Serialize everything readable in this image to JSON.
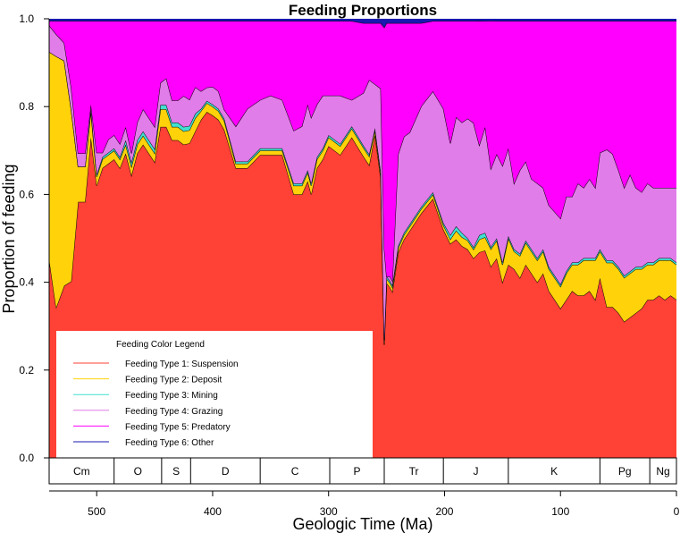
{
  "chart_data": {
    "type": "area",
    "title": "Feeding Proportions",
    "xlabel": "Geologic Time (Ma)",
    "ylabel": "Proportion of feeding",
    "xlim": [
      541,
      0
    ],
    "ylim": [
      0,
      1
    ],
    "x_ticks": [
      500,
      400,
      300,
      200,
      100,
      0
    ],
    "y_ticks": [
      "0.0",
      "0.2",
      "0.4",
      "0.6",
      "0.8",
      "1.0"
    ],
    "grid": false,
    "legend": {
      "title": "Feeding Color Legend",
      "placement": "bottom-left",
      "entries": [
        {
          "label": "Feeding Type 1: Suspension",
          "color": "#FF4136"
        },
        {
          "label": "Feeding Type 2: Deposit",
          "color": "#FFD20A"
        },
        {
          "label": "Feeding Type 3: Mining",
          "color": "#40E0D0"
        },
        {
          "label": "Feeding Type 4: Grazing",
          "color": "#E07DE8"
        },
        {
          "label": "Feeding Type 5: Predatory",
          "color": "#FF00FF"
        },
        {
          "label": "Feeding Type 6: Other",
          "color": "#1A1AB0"
        }
      ]
    },
    "periods": [
      {
        "label": "Cm",
        "start": 541,
        "end": 485
      },
      {
        "label": "O",
        "start": 485,
        "end": 444
      },
      {
        "label": "S",
        "start": 444,
        "end": 419
      },
      {
        "label": "D",
        "start": 419,
        "end": 359
      },
      {
        "label": "C",
        "start": 359,
        "end": 299
      },
      {
        "label": "P",
        "start": 299,
        "end": 252
      },
      {
        "label": "Tr",
        "start": 252,
        "end": 201
      },
      {
        "label": "J",
        "start": 201,
        "end": 145
      },
      {
        "label": "K",
        "start": 145,
        "end": 66
      },
      {
        "label": "Pg",
        "start": 66,
        "end": 23
      },
      {
        "label": "Ng",
        "start": 23,
        "end": 0
      }
    ],
    "x": [
      541,
      535,
      528,
      522,
      516,
      510,
      505,
      500,
      495,
      490,
      485,
      480,
      475,
      470,
      465,
      460,
      455,
      450,
      445,
      440,
      435,
      430,
      425,
      420,
      415,
      410,
      405,
      400,
      395,
      390,
      380,
      370,
      359,
      350,
      340,
      330,
      323,
      318,
      315,
      310,
      305,
      300,
      290,
      280,
      270,
      265,
      260,
      255,
      252,
      250,
      247,
      245,
      240,
      235,
      230,
      220,
      210,
      201,
      195,
      190,
      185,
      180,
      175,
      170,
      165,
      160,
      155,
      150,
      145,
      140,
      135,
      130,
      125,
      120,
      115,
      110,
      100,
      95,
      90,
      85,
      80,
      75,
      70,
      66,
      60,
      55,
      50,
      45,
      40,
      35,
      30,
      25,
      20,
      15,
      10,
      5,
      0
    ],
    "series": [
      {
        "name": "Feeding Type 1: Suspension",
        "color": "#FF4136",
        "values": [
          0.45,
          0.34,
          0.39,
          0.4,
          0.58,
          0.58,
          0.73,
          0.62,
          0.66,
          0.67,
          0.68,
          0.66,
          0.69,
          0.64,
          0.69,
          0.71,
          0.69,
          0.67,
          0.75,
          0.75,
          0.72,
          0.72,
          0.71,
          0.72,
          0.74,
          0.77,
          0.78,
          0.78,
          0.77,
          0.74,
          0.66,
          0.66,
          0.69,
          0.69,
          0.69,
          0.6,
          0.6,
          0.63,
          0.6,
          0.66,
          0.68,
          0.71,
          0.69,
          0.73,
          0.69,
          0.67,
          0.74,
          0.64,
          0.26,
          0.4,
          0.39,
          0.38,
          0.47,
          0.5,
          0.52,
          0.56,
          0.59,
          0.52,
          0.49,
          0.5,
          0.48,
          0.47,
          0.45,
          0.48,
          0.47,
          0.44,
          0.45,
          0.4,
          0.44,
          0.43,
          0.41,
          0.44,
          0.42,
          0.4,
          0.42,
          0.38,
          0.34,
          0.36,
          0.38,
          0.37,
          0.37,
          0.38,
          0.36,
          0.41,
          0.34,
          0.34,
          0.33,
          0.31,
          0.32,
          0.33,
          0.34,
          0.36,
          0.36,
          0.37,
          0.36,
          0.37,
          0.36
        ]
      },
      {
        "name": "Feeding Type 2: Deposit",
        "color": "#FFD20A",
        "values": [
          0.47,
          0.57,
          0.51,
          0.39,
          0.08,
          0.08,
          0.06,
          0.02,
          0.02,
          0.02,
          0.02,
          0.02,
          0.02,
          0.02,
          0.02,
          0.02,
          0.02,
          0.02,
          0.04,
          0.04,
          0.03,
          0.03,
          0.03,
          0.03,
          0.03,
          0.02,
          0.02,
          0.02,
          0.02,
          0.02,
          0.01,
          0.01,
          0.01,
          0.01,
          0.01,
          0.02,
          0.02,
          0.02,
          0.02,
          0.02,
          0.02,
          0.02,
          0.02,
          0.02,
          0.02,
          0.02,
          0.01,
          0.01,
          0.01,
          0.01,
          0.01,
          0.01,
          0.01,
          0.01,
          0.01,
          0.01,
          0.01,
          0.01,
          0.01,
          0.02,
          0.02,
          0.02,
          0.02,
          0.03,
          0.03,
          0.04,
          0.04,
          0.04,
          0.06,
          0.04,
          0.05,
          0.05,
          0.05,
          0.05,
          0.05,
          0.05,
          0.05,
          0.06,
          0.06,
          0.07,
          0.08,
          0.07,
          0.09,
          0.06,
          0.1,
          0.1,
          0.1,
          0.1,
          0.1,
          0.1,
          0.09,
          0.08,
          0.08,
          0.08,
          0.09,
          0.08,
          0.08
        ]
      },
      {
        "name": "Feeding Type 3: Mining",
        "color": "#40E0D0",
        "values": [
          0.0,
          0.0,
          0.0,
          0.0,
          0.0,
          0.0,
          0.005,
          0.005,
          0.005,
          0.005,
          0.005,
          0.005,
          0.01,
          0.01,
          0.01,
          0.01,
          0.01,
          0.01,
          0.01,
          0.01,
          0.01,
          0.01,
          0.01,
          0.01,
          0.01,
          0.005,
          0.005,
          0.005,
          0.005,
          0.005,
          0.005,
          0.005,
          0.005,
          0.005,
          0.005,
          0.005,
          0.005,
          0.005,
          0.005,
          0.005,
          0.005,
          0.005,
          0.005,
          0.005,
          0.005,
          0.005,
          0.005,
          0.005,
          0.0,
          0.005,
          0.005,
          0.005,
          0.005,
          0.005,
          0.005,
          0.005,
          0.005,
          0.005,
          0.01,
          0.01,
          0.01,
          0.005,
          0.005,
          0.01,
          0.01,
          0.005,
          0.005,
          0.005,
          0.005,
          0.005,
          0.005,
          0.005,
          0.005,
          0.005,
          0.005,
          0.005,
          0.005,
          0.005,
          0.005,
          0.005,
          0.005,
          0.005,
          0.005,
          0.005,
          0.005,
          0.005,
          0.005,
          0.005,
          0.005,
          0.005,
          0.005,
          0.005,
          0.005,
          0.005,
          0.005,
          0.005,
          0.005
        ]
      },
      {
        "name": "Feeding Type 4: Grazing",
        "color": "#E07DE8",
        "values": [
          0.06,
          0.05,
          0.04,
          0.05,
          0.03,
          0.03,
          0.01,
          0.05,
          0.01,
          0.03,
          0.03,
          0.03,
          0.03,
          0.02,
          0.04,
          0.05,
          0.05,
          0.05,
          0.05,
          0.06,
          0.05,
          0.05,
          0.07,
          0.06,
          0.06,
          0.04,
          0.03,
          0.04,
          0.04,
          0.02,
          0.08,
          0.12,
          0.11,
          0.12,
          0.11,
          0.12,
          0.13,
          0.15,
          0.15,
          0.12,
          0.12,
          0.09,
          0.11,
          0.06,
          0.12,
          0.17,
          0.1,
          0.19,
          0.21,
          0.0,
          0.01,
          0.01,
          0.21,
          0.22,
          0.21,
          0.23,
          0.23,
          0.26,
          0.21,
          0.25,
          0.25,
          0.27,
          0.28,
          0.21,
          0.24,
          0.18,
          0.19,
          0.22,
          0.2,
          0.15,
          0.19,
          0.18,
          0.16,
          0.17,
          0.14,
          0.14,
          0.15,
          0.17,
          0.15,
          0.18,
          0.16,
          0.18,
          0.16,
          0.22,
          0.25,
          0.24,
          0.22,
          0.2,
          0.22,
          0.18,
          0.17,
          0.18,
          0.17,
          0.16,
          0.16,
          0.16,
          0.17
        ]
      },
      {
        "name": "Feeding Type 5: Predatory",
        "color": "#FF00FF",
        "values": [
          0.01,
          0.03,
          0.05,
          0.15,
          0.3,
          0.3,
          0.19,
          0.3,
          0.3,
          0.27,
          0.26,
          0.28,
          0.24,
          0.3,
          0.23,
          0.2,
          0.22,
          0.24,
          0.14,
          0.13,
          0.18,
          0.18,
          0.17,
          0.18,
          0.15,
          0.16,
          0.15,
          0.15,
          0.16,
          0.2,
          0.24,
          0.2,
          0.18,
          0.17,
          0.18,
          0.25,
          0.24,
          0.19,
          0.22,
          0.19,
          0.17,
          0.17,
          0.17,
          0.18,
          0.16,
          0.13,
          0.14,
          0.15,
          0.51,
          0.58,
          0.58,
          0.59,
          0.3,
          0.26,
          0.25,
          0.19,
          0.16,
          0.2,
          0.28,
          0.22,
          0.23,
          0.22,
          0.23,
          0.29,
          0.24,
          0.34,
          0.3,
          0.33,
          0.29,
          0.37,
          0.34,
          0.32,
          0.36,
          0.37,
          0.38,
          0.42,
          0.45,
          0.4,
          0.4,
          0.37,
          0.38,
          0.36,
          0.38,
          0.3,
          0.29,
          0.3,
          0.34,
          0.38,
          0.35,
          0.38,
          0.39,
          0.37,
          0.38,
          0.38,
          0.38,
          0.38,
          0.38
        ]
      },
      {
        "name": "Feeding Type 6: Other",
        "color": "#1A1AB0",
        "values": [
          0.005,
          0.005,
          0.005,
          0.005,
          0.005,
          0.005,
          0.005,
          0.005,
          0.005,
          0.005,
          0.005,
          0.005,
          0.005,
          0.005,
          0.005,
          0.005,
          0.005,
          0.005,
          0.005,
          0.005,
          0.005,
          0.005,
          0.005,
          0.005,
          0.005,
          0.005,
          0.005,
          0.005,
          0.005,
          0.005,
          0.005,
          0.005,
          0.005,
          0.005,
          0.005,
          0.005,
          0.005,
          0.005,
          0.005,
          0.005,
          0.005,
          0.005,
          0.005,
          0.005,
          0.01,
          0.01,
          0.01,
          0.01,
          0.02,
          0.01,
          0.01,
          0.01,
          0.01,
          0.01,
          0.01,
          0.01,
          0.005,
          0.005,
          0.005,
          0.005,
          0.005,
          0.005,
          0.005,
          0.005,
          0.005,
          0.005,
          0.005,
          0.005,
          0.005,
          0.005,
          0.005,
          0.005,
          0.005,
          0.005,
          0.005,
          0.005,
          0.005,
          0.005,
          0.005,
          0.005,
          0.005,
          0.005,
          0.005,
          0.005,
          0.005,
          0.005,
          0.005,
          0.005,
          0.005,
          0.005,
          0.005,
          0.005,
          0.005,
          0.005,
          0.005,
          0.005,
          0.005
        ]
      }
    ]
  }
}
